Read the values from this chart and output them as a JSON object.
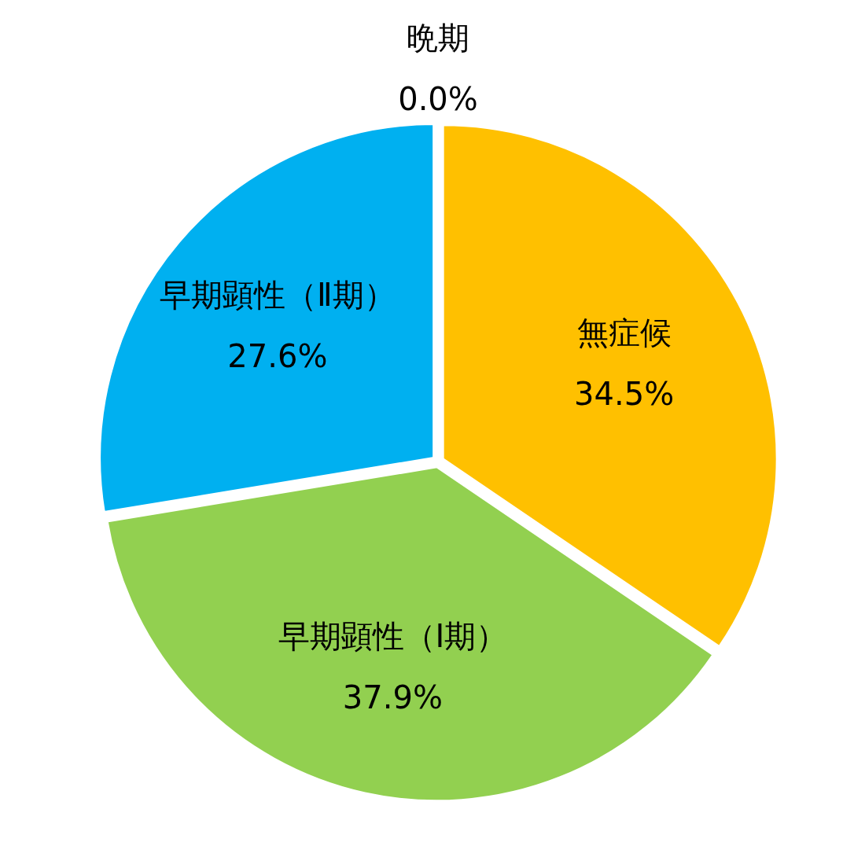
{
  "chart_data": {
    "type": "pie",
    "categories": [
      "無症候",
      "早期顕性（Ⅰ期）",
      "早期顕性（Ⅱ期）",
      "晩期"
    ],
    "values": [
      34.5,
      37.9,
      27.6,
      0.0
    ],
    "colors": [
      "#ffc000",
      "#92d050",
      "#00b0f0",
      null
    ],
    "value_labels": [
      "34.5%",
      "37.9%",
      "27.6%",
      "0.0%"
    ]
  }
}
